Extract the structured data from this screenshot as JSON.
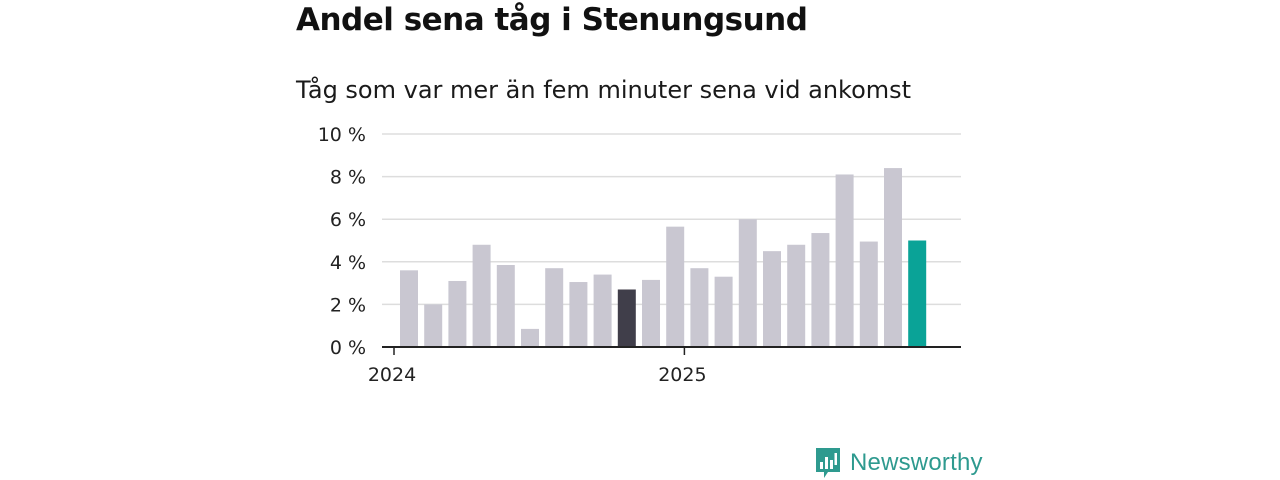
{
  "header": {
    "title": "Andel sena tåg i Stenungsund",
    "subtitle": "Tåg som var mer än fem minuter sena vid ankomst"
  },
  "brand": {
    "name": "Newsworthy",
    "color": "#2e9a8f"
  },
  "colors": {
    "default_bar": "#c9c7d1",
    "highlight_bar": "#403e4a",
    "latest_bar": "#0aa397",
    "grid": "#dddddd",
    "axis": "#222222"
  },
  "chart_data": {
    "type": "bar",
    "x": [
      "2024-01",
      "2024-02",
      "2024-03",
      "2024-04",
      "2024-05",
      "2024-06",
      "2024-07",
      "2024-08",
      "2024-09",
      "2024-10",
      "2024-11",
      "2024-12",
      "2025-01",
      "2025-02",
      "2025-03",
      "2025-04",
      "2025-05",
      "2025-06",
      "2025-07",
      "2025-08",
      "2025-09",
      "2025-10"
    ],
    "values": [
      3.6,
      2.0,
      3.1,
      4.8,
      3.85,
      0.85,
      3.7,
      3.05,
      3.4,
      2.7,
      3.15,
      5.65,
      3.7,
      3.3,
      6.0,
      4.5,
      4.8,
      5.35,
      8.1,
      4.95,
      8.4,
      5.0
    ],
    "highlight_index": 9,
    "latest_index": 21,
    "ylim": [
      0,
      10
    ],
    "yticks": [
      0,
      2,
      4,
      6,
      8,
      10
    ],
    "ytick_labels": [
      "0 %",
      "2 %",
      "4 %",
      "6 %",
      "8 %",
      "10 %"
    ],
    "xtick_labels": [
      {
        "index": 0,
        "label": "2024"
      },
      {
        "index": 12,
        "label": "2025"
      }
    ],
    "grid": true
  }
}
